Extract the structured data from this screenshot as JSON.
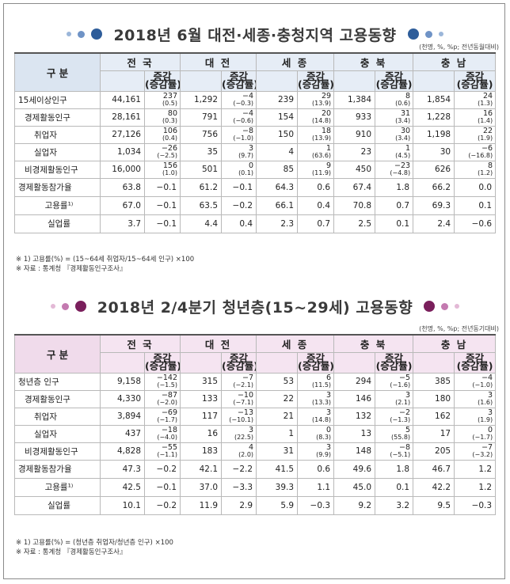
{
  "section1": {
    "title": "2018년 6월 대전·세종·충청지역 고용동향",
    "unit": "(천명, %, %p; 전년동월대비)",
    "header_gubun": "구 분",
    "regions": [
      "전 국",
      "대 전",
      "세 종",
      "충 북",
      "충 남"
    ],
    "change_label_top": "증감",
    "change_label_bottom": "(증감률)",
    "rows": [
      {
        "label": "15세이상인구",
        "indent": 0,
        "cells": [
          [
            "44,161",
            "237",
            "(0.5)"
          ],
          [
            "1,292",
            "−4",
            "(−0.3)"
          ],
          [
            "239",
            "29",
            "(13.9)"
          ],
          [
            "1,384",
            "8",
            "(0.6)"
          ],
          [
            "1,854",
            "24",
            "(1.3)"
          ]
        ]
      },
      {
        "label": "경제활동인구",
        "indent": 1,
        "cells": [
          [
            "28,161",
            "80",
            "(0.3)"
          ],
          [
            "791",
            "−4",
            "(−0.6)"
          ],
          [
            "154",
            "20",
            "(14.8)"
          ],
          [
            "933",
            "31",
            "(3.4)"
          ],
          [
            "1,228",
            "16",
            "(1.4)"
          ]
        ]
      },
      {
        "label": "취업자",
        "indent": 2,
        "cells": [
          [
            "27,126",
            "106",
            "(0.4)"
          ],
          [
            "756",
            "−8",
            "(−1.0)"
          ],
          [
            "150",
            "18",
            "(13.9)"
          ],
          [
            "910",
            "30",
            "(3.4)"
          ],
          [
            "1,198",
            "22",
            "(1.9)"
          ]
        ]
      },
      {
        "label": "실업자",
        "indent": 2,
        "cells": [
          [
            "1,034",
            "−26",
            "(−2.5)"
          ],
          [
            "35",
            "3",
            "(9.7)"
          ],
          [
            "4",
            "1",
            "(63.6)"
          ],
          [
            "23",
            "1",
            "(4.5)"
          ],
          [
            "30",
            "−6",
            "(−16.8)"
          ]
        ]
      },
      {
        "label": "비경제활동인구",
        "indent": 1,
        "cells": [
          [
            "16,000",
            "156",
            "(1.0)"
          ],
          [
            "501",
            "0",
            "(0.1)"
          ],
          [
            "85",
            "9",
            "(11.9)"
          ],
          [
            "450",
            "−23",
            "(−4.8)"
          ],
          [
            "626",
            "8",
            "(1.2)"
          ]
        ]
      }
    ],
    "rate_rows": [
      {
        "label": "경제활동참가율",
        "align": "left",
        "cells": [
          [
            "63.8",
            "−0.1"
          ],
          [
            "61.2",
            "−0.1"
          ],
          [
            "64.3",
            "0.6"
          ],
          [
            "67.4",
            "1.8"
          ],
          [
            "66.2",
            "0.0"
          ]
        ]
      },
      {
        "label": "고용률¹⁾",
        "align": "center",
        "cells": [
          [
            "67.0",
            "−0.1"
          ],
          [
            "63.5",
            "−0.2"
          ],
          [
            "66.1",
            "0.4"
          ],
          [
            "70.8",
            "0.7"
          ],
          [
            "69.3",
            "0.1"
          ]
        ]
      },
      {
        "label": "실업률",
        "align": "center",
        "cells": [
          [
            "3.7",
            "−0.1"
          ],
          [
            "4.4",
            "0.4"
          ],
          [
            "2.3",
            "0.7"
          ],
          [
            "2.5",
            "0.1"
          ],
          [
            "2.4",
            "−0.6"
          ]
        ]
      }
    ],
    "note1": "※ 1) 고용률(%) = (15~64세 취업자/15~64세 인구) ×100",
    "note2": "※ 자료 : 통계청 『경제활동인구조사』"
  },
  "section2": {
    "title": "2018년 2/4분기 청년층(15~29세) 고용동향",
    "unit": "(천명, %, %p; 전년동기대비)",
    "header_gubun": "구 분",
    "regions": [
      "전 국",
      "대 전",
      "세 종",
      "충 북",
      "충 남"
    ],
    "change_label_top": "증감",
    "change_label_bottom": "(증감률)",
    "rows": [
      {
        "label": "청년층 인구",
        "indent": 0,
        "cells": [
          [
            "9,158",
            "−142",
            "(−1.5)"
          ],
          [
            "315",
            "−7",
            "(−2.1)"
          ],
          [
            "53",
            "6",
            "(11.5)"
          ],
          [
            "294",
            "−5",
            "(−1.6)"
          ],
          [
            "385",
            "−4",
            "(−1.0)"
          ]
        ]
      },
      {
        "label": "경제활동인구",
        "indent": 1,
        "cells": [
          [
            "4,330",
            "−87",
            "(−2.0)"
          ],
          [
            "133",
            "−10",
            "(−7.1)"
          ],
          [
            "22",
            "3",
            "(13.3)"
          ],
          [
            "146",
            "3",
            "(2.1)"
          ],
          [
            "180",
            "3",
            "(1.6)"
          ]
        ]
      },
      {
        "label": "취업자",
        "indent": 2,
        "cells": [
          [
            "3,894",
            "−69",
            "(−1.7)"
          ],
          [
            "117",
            "−13",
            "(−10.1)"
          ],
          [
            "21",
            "3",
            "(14.8)"
          ],
          [
            "132",
            "−2",
            "(−1.3)"
          ],
          [
            "162",
            "3",
            "(1.9)"
          ]
        ]
      },
      {
        "label": "실업자",
        "indent": 2,
        "cells": [
          [
            "437",
            "−18",
            "(−4.0)"
          ],
          [
            "16",
            "3",
            "(22.5)"
          ],
          [
            "1",
            "0",
            "(8.3)"
          ],
          [
            "13",
            "5",
            "(55.8)"
          ],
          [
            "17",
            "0",
            "(−1.7)"
          ]
        ]
      },
      {
        "label": "비경제활동인구",
        "indent": 1,
        "cells": [
          [
            "4,828",
            "−55",
            "(−1.1)"
          ],
          [
            "183",
            "4",
            "(2.0)"
          ],
          [
            "31",
            "3",
            "(9.9)"
          ],
          [
            "148",
            "−8",
            "(−5.1)"
          ],
          [
            "205",
            "−7",
            "(−3.2)"
          ]
        ]
      }
    ],
    "rate_rows": [
      {
        "label": "경제활동참가율",
        "align": "left",
        "cells": [
          [
            "47.3",
            "−0.2"
          ],
          [
            "42.1",
            "−2.2"
          ],
          [
            "41.5",
            "0.6"
          ],
          [
            "49.6",
            "1.8"
          ],
          [
            "46.7",
            "1.2"
          ]
        ]
      },
      {
        "label": "고용률¹⁾",
        "align": "center",
        "cells": [
          [
            "42.5",
            "−0.1"
          ],
          [
            "37.0",
            "−3.3"
          ],
          [
            "39.3",
            "1.1"
          ],
          [
            "45.0",
            "0.1"
          ],
          [
            "42.2",
            "1.2"
          ]
        ]
      },
      {
        "label": "실업률",
        "align": "center",
        "cells": [
          [
            "10.1",
            "−0.2"
          ],
          [
            "11.9",
            "2.9"
          ],
          [
            "5.9",
            "−0.3"
          ],
          [
            "9.2",
            "3.2"
          ],
          [
            "9.5",
            "−0.3"
          ]
        ]
      }
    ],
    "note1": "※ 1) 고용률(%) = (청년층 취업자/청년층 인구) ×100",
    "note2": "※ 자료 : 통계청 『경제활동인구조사』"
  },
  "colors": {
    "section1_accent": "#2e5d9a",
    "section1_light": "#9bb6d9",
    "section2_accent": "#7a1f5c",
    "section2_light": "#d9a8cc"
  }
}
